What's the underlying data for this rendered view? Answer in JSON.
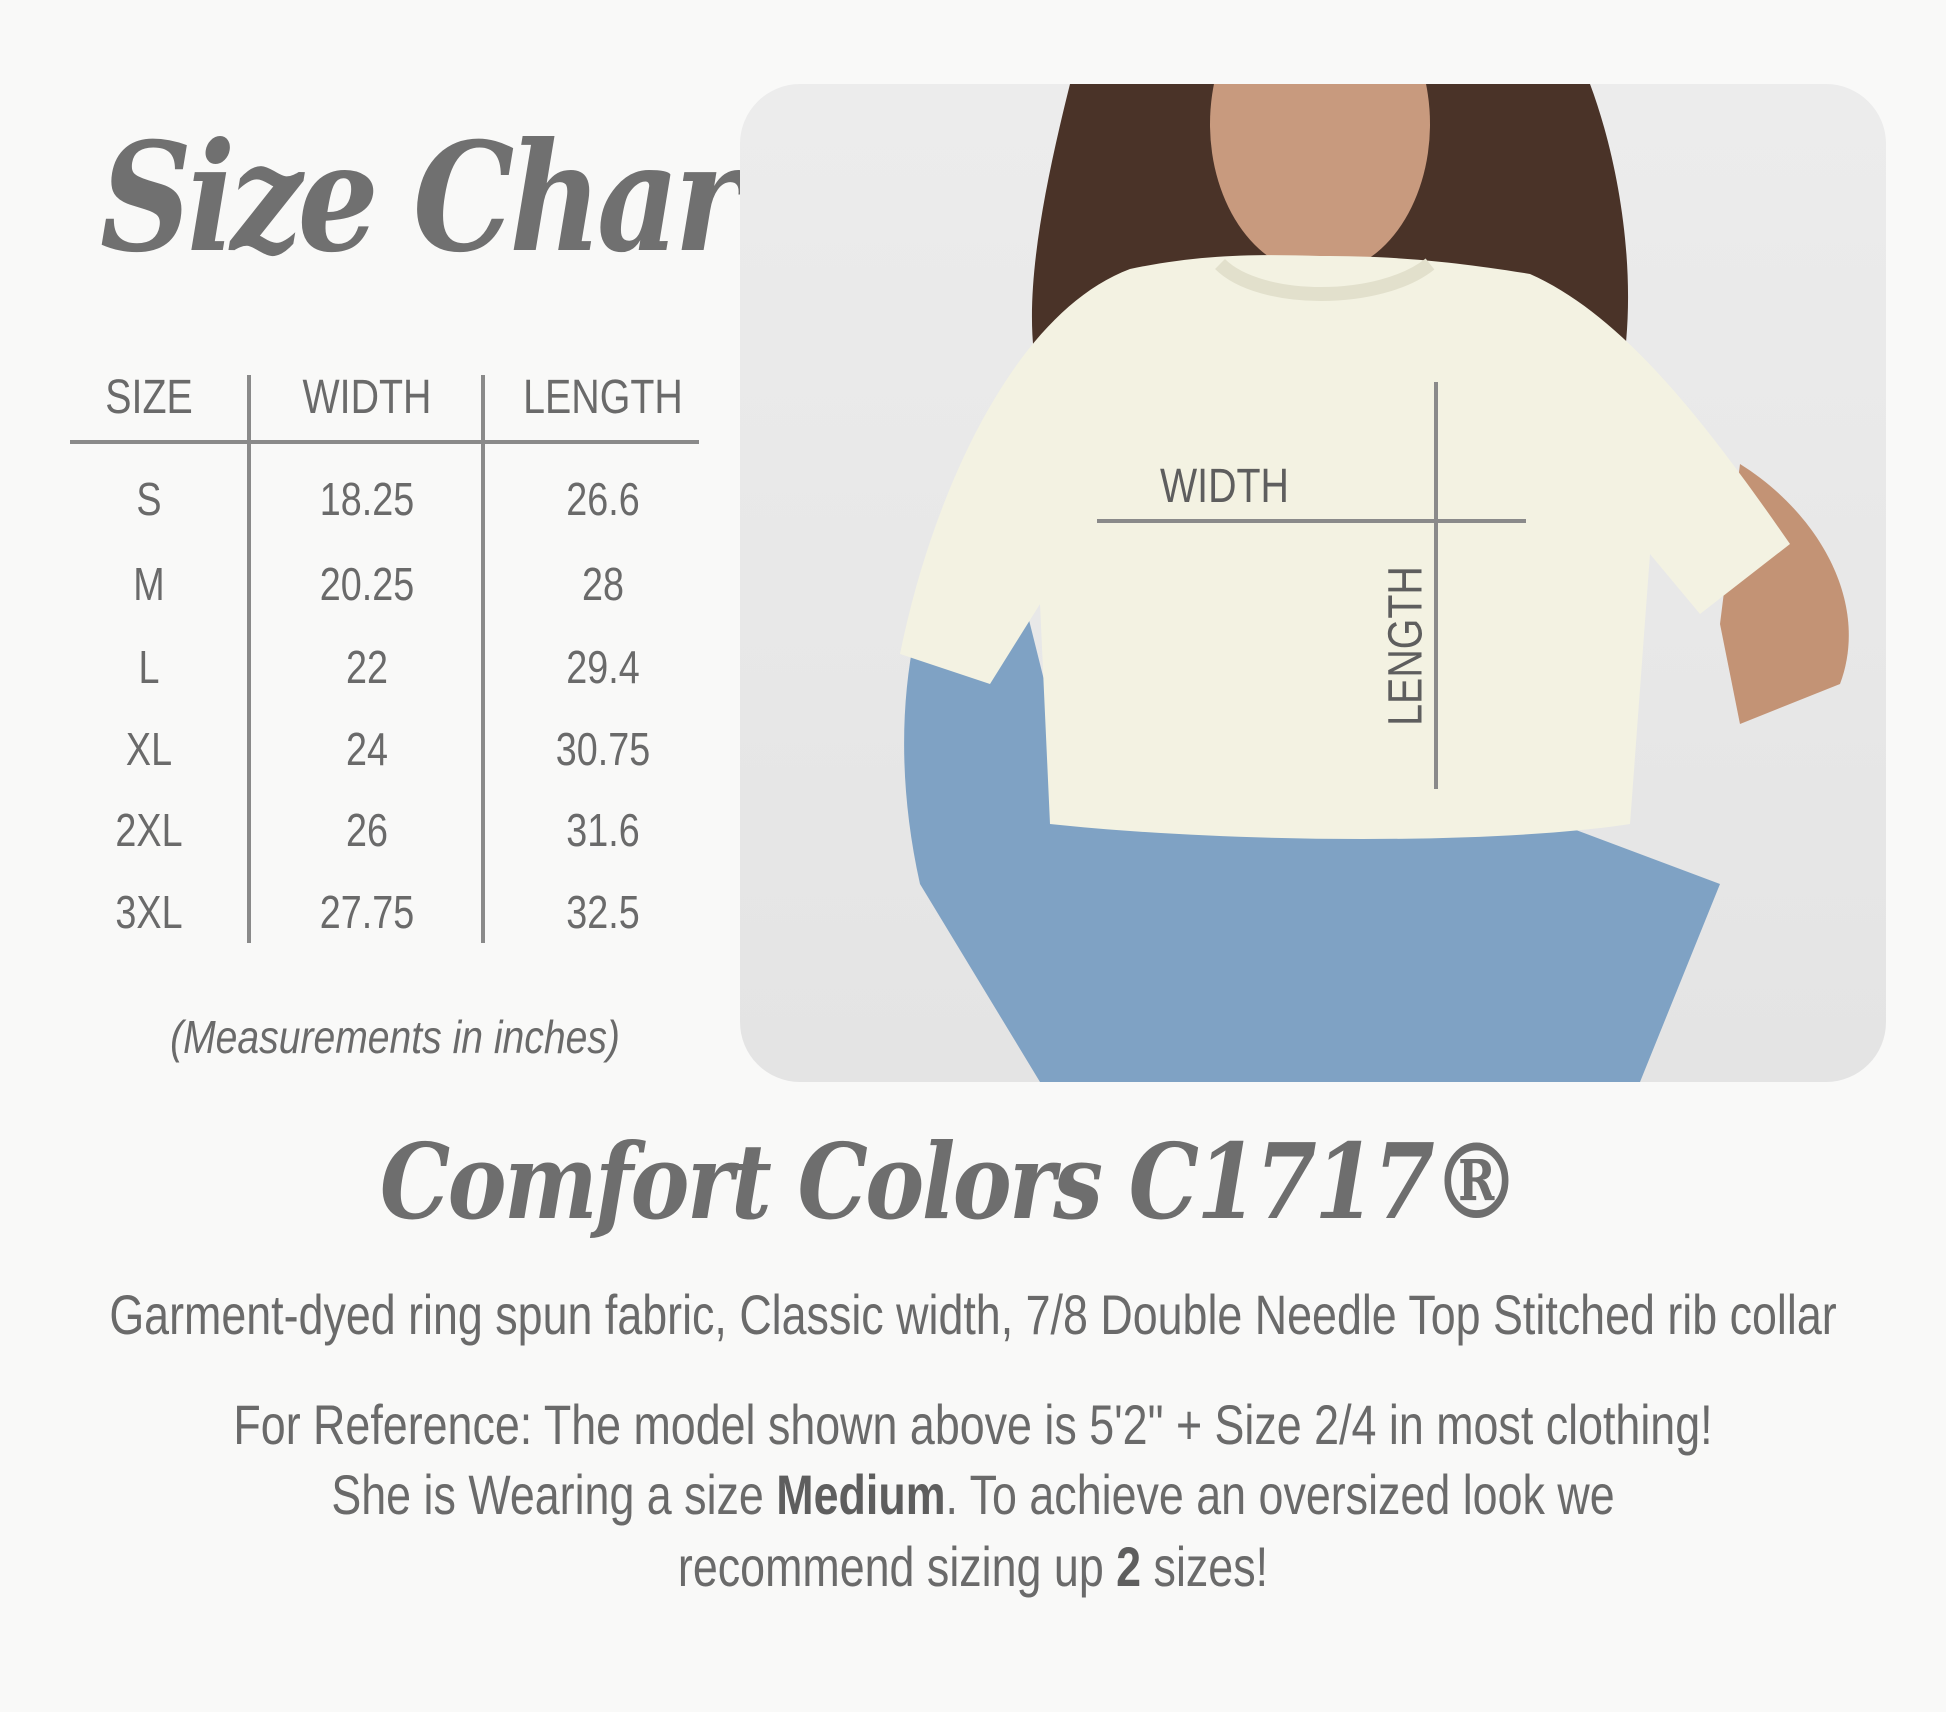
{
  "title": "Size Chart",
  "table": {
    "headers": [
      "SIZE",
      "WIDTH",
      "LENGTH"
    ],
    "rows": [
      [
        "S",
        "18.25",
        "26.6"
      ],
      [
        "M",
        "20.25",
        "28"
      ],
      [
        "L",
        "22",
        "29.4"
      ],
      [
        "XL",
        "24",
        "30.75"
      ],
      [
        "2XL",
        "26",
        "31.6"
      ],
      [
        "3XL",
        "27.75",
        "32.5"
      ]
    ]
  },
  "note": "(Measurements in inches)",
  "photo": {
    "width_label": "WIDTH",
    "length_label": "LENGTH"
  },
  "brand": "Comfort Colors C1717®",
  "description": "Garment-dyed ring spun fabric, Classic width, 7/8 Double Needle Top Stitched rib collar",
  "reference": {
    "line1": "For Reference: The model shown above is 5'2\" + Size 2/4 in most clothing!",
    "line2_a": "She is Wearing a size ",
    "line2_b": "Medium",
    "line2_c": ". To achieve an oversized look we",
    "line3_a": "recommend sizing up ",
    "line3_b": "2",
    "line3_c": " sizes!"
  }
}
